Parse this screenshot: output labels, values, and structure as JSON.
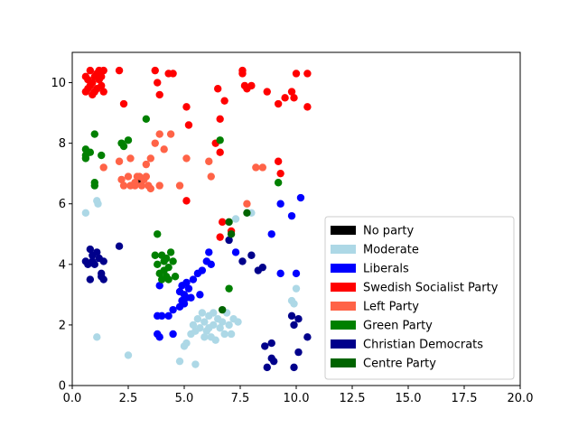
{
  "chart_data": {
    "type": "scatter",
    "title": "",
    "xlabel": "",
    "ylabel": "",
    "xlim": [
      0,
      20
    ],
    "ylim": [
      0,
      11
    ],
    "xticks": [
      "0.0",
      "2.5",
      "5.0",
      "7.5",
      "10.0",
      "12.5",
      "15.0",
      "17.5",
      "20.0"
    ],
    "yticks": [
      "0",
      "2",
      "4",
      "6",
      "8",
      "10"
    ],
    "grid": false,
    "legend_position": "lower-right",
    "series": [
      {
        "name": "No party",
        "color": "#000000",
        "points": [
          [
            3.0,
            6.8
          ]
        ]
      },
      {
        "name": "Moderate",
        "color": "#add8e6",
        "points": [
          [
            0.6,
            5.7
          ],
          [
            1.1,
            6.1
          ],
          [
            1.15,
            6.0
          ],
          [
            1.1,
            1.6
          ],
          [
            2.5,
            1.0
          ],
          [
            4.8,
            0.8
          ],
          [
            5.5,
            0.7
          ],
          [
            5.0,
            1.3
          ],
          [
            5.1,
            1.4
          ],
          [
            5.3,
            1.7
          ],
          [
            5.4,
            2.0
          ],
          [
            5.5,
            1.8
          ],
          [
            5.6,
            2.2
          ],
          [
            5.7,
            1.9
          ],
          [
            5.8,
            2.4
          ],
          [
            5.9,
            2.1
          ],
          [
            6.0,
            1.8
          ],
          [
            6.1,
            2.3
          ],
          [
            6.2,
            1.6
          ],
          [
            6.3,
            2.0
          ],
          [
            6.4,
            1.5
          ],
          [
            6.5,
            2.2
          ],
          [
            6.6,
            1.9
          ],
          [
            6.7,
            2.1
          ],
          [
            6.8,
            1.7
          ],
          [
            6.9,
            2.4
          ],
          [
            7.0,
            2.0
          ],
          [
            7.1,
            1.7
          ],
          [
            7.2,
            2.2
          ],
          [
            7.4,
            2.1
          ],
          [
            6.3,
            2.4
          ],
          [
            6.1,
            1.9
          ],
          [
            5.9,
            1.6
          ],
          [
            7.3,
            5.5
          ],
          [
            8.0,
            5.7
          ],
          [
            9.9,
            2.7
          ],
          [
            10.0,
            3.2
          ],
          [
            9.8,
            2.8
          ]
        ]
      },
      {
        "name": "Liberals",
        "color": "#0000ff",
        "points": [
          [
            3.8,
            1.7
          ],
          [
            3.9,
            1.6
          ],
          [
            4.0,
            2.3
          ],
          [
            3.8,
            2.3
          ],
          [
            4.3,
            2.3
          ],
          [
            4.5,
            1.7
          ],
          [
            4.5,
            2.5
          ],
          [
            4.8,
            2.6
          ],
          [
            4.8,
            3.1
          ],
          [
            4.9,
            3.3
          ],
          [
            5.0,
            3.0
          ],
          [
            5.1,
            3.4
          ],
          [
            5.2,
            3.2
          ],
          [
            5.0,
            2.7
          ],
          [
            5.3,
            2.9
          ],
          [
            5.4,
            3.5
          ],
          [
            5.6,
            3.7
          ],
          [
            5.8,
            3.8
          ],
          [
            6.0,
            4.1
          ],
          [
            6.1,
            4.4
          ],
          [
            6.2,
            4.0
          ],
          [
            5.1,
            2.9
          ],
          [
            4.9,
            2.8
          ],
          [
            3.9,
            3.3
          ],
          [
            8.9,
            5.0
          ],
          [
            9.3,
            6.0
          ],
          [
            9.8,
            5.6
          ],
          [
            10.2,
            6.2
          ],
          [
            9.3,
            3.7
          ],
          [
            10.0,
            3.7
          ],
          [
            7.3,
            4.4
          ],
          [
            5.7,
            3.0
          ]
        ]
      },
      {
        "name": "Swedish Socialist Party",
        "color": "#ff0000",
        "points": [
          [
            0.6,
            10.2
          ],
          [
            0.7,
            9.8
          ],
          [
            0.8,
            10.4
          ],
          [
            0.9,
            10.0
          ],
          [
            1.0,
            9.7
          ],
          [
            1.1,
            10.3
          ],
          [
            1.2,
            10.1
          ],
          [
            1.3,
            9.9
          ],
          [
            1.4,
            10.4
          ],
          [
            0.7,
            10.1
          ],
          [
            0.9,
            9.6
          ],
          [
            1.1,
            9.8
          ],
          [
            1.3,
            10.2
          ],
          [
            0.8,
            9.9
          ],
          [
            1.2,
            10.4
          ],
          [
            1.0,
            10.2
          ],
          [
            0.6,
            9.7
          ],
          [
            1.4,
            9.7
          ],
          [
            2.1,
            10.4
          ],
          [
            2.3,
            9.3
          ],
          [
            3.7,
            10.4
          ],
          [
            3.8,
            10.0
          ],
          [
            3.9,
            9.6
          ],
          [
            4.3,
            10.3
          ],
          [
            4.5,
            10.3
          ],
          [
            5.1,
            9.2
          ],
          [
            5.2,
            8.6
          ],
          [
            6.5,
            9.8
          ],
          [
            6.6,
            8.8
          ],
          [
            6.8,
            9.4
          ],
          [
            7.6,
            10.4
          ],
          [
            7.6,
            10.3
          ],
          [
            7.7,
            9.9
          ],
          [
            7.8,
            9.8
          ],
          [
            8.0,
            9.9
          ],
          [
            8.7,
            9.7
          ],
          [
            9.2,
            9.3
          ],
          [
            9.5,
            9.5
          ],
          [
            9.8,
            9.7
          ],
          [
            9.9,
            9.5
          ],
          [
            10.0,
            10.3
          ],
          [
            10.5,
            10.3
          ],
          [
            10.5,
            9.2
          ],
          [
            9.2,
            7.4
          ],
          [
            9.3,
            7.0
          ],
          [
            6.4,
            8.0
          ],
          [
            6.7,
            5.4
          ],
          [
            6.6,
            4.9
          ],
          [
            7.1,
            5.1
          ],
          [
            5.1,
            6.1
          ],
          [
            6.6,
            7.7
          ]
        ]
      },
      {
        "name": "Left Party",
        "color": "#ff6347",
        "points": [
          [
            1.4,
            7.2
          ],
          [
            2.1,
            7.4
          ],
          [
            2.2,
            6.8
          ],
          [
            2.3,
            6.6
          ],
          [
            2.5,
            6.9
          ],
          [
            2.6,
            7.5
          ],
          [
            2.6,
            6.6
          ],
          [
            2.8,
            6.6
          ],
          [
            2.9,
            6.9
          ],
          [
            3.0,
            6.9
          ],
          [
            3.2,
            6.8
          ],
          [
            3.3,
            7.3
          ],
          [
            3.4,
            6.6
          ],
          [
            3.5,
            7.5
          ],
          [
            3.7,
            8.0
          ],
          [
            3.9,
            8.3
          ],
          [
            4.1,
            7.8
          ],
          [
            4.4,
            8.3
          ],
          [
            3.9,
            6.6
          ],
          [
            3.3,
            6.9
          ],
          [
            4.8,
            6.6
          ],
          [
            5.1,
            7.5
          ],
          [
            6.1,
            7.4
          ],
          [
            6.2,
            6.9
          ],
          [
            8.2,
            7.2
          ],
          [
            8.5,
            7.2
          ],
          [
            7.8,
            6.0
          ],
          [
            2.8,
            6.7
          ],
          [
            3.1,
            6.6
          ],
          [
            3.5,
            6.5
          ]
        ]
      },
      {
        "name": "Green Party",
        "color": "#008000",
        "points": [
          [
            0.6,
            7.8
          ],
          [
            0.6,
            7.6
          ],
          [
            0.6,
            7.5
          ],
          [
            0.8,
            7.7
          ],
          [
            1.0,
            8.3
          ],
          [
            1.3,
            7.6
          ],
          [
            1.0,
            6.7
          ],
          [
            1.0,
            6.6
          ],
          [
            2.2,
            8.0
          ],
          [
            2.3,
            7.9
          ],
          [
            2.5,
            8.1
          ],
          [
            3.3,
            8.8
          ],
          [
            3.8,
            5.0
          ],
          [
            3.7,
            4.3
          ],
          [
            3.8,
            4.0
          ],
          [
            3.9,
            3.7
          ],
          [
            4.0,
            4.3
          ],
          [
            4.1,
            4.1
          ],
          [
            4.2,
            4.2
          ],
          [
            4.3,
            3.9
          ],
          [
            4.4,
            4.4
          ],
          [
            4.5,
            4.1
          ],
          [
            4.2,
            3.6
          ],
          [
            4.0,
            3.5
          ],
          [
            4.6,
            3.6
          ],
          [
            4.3,
            3.5
          ],
          [
            4.1,
            3.8
          ],
          [
            6.6,
            8.1
          ],
          [
            7.0,
            3.2
          ],
          [
            9.2,
            6.7
          ]
        ]
      },
      {
        "name": "Christian Democrats",
        "color": "#00008b",
        "points": [
          [
            0.6,
            4.1
          ],
          [
            0.7,
            4.0
          ],
          [
            0.8,
            4.5
          ],
          [
            0.9,
            4.3
          ],
          [
            1.0,
            4.0
          ],
          [
            1.1,
            4.4
          ],
          [
            1.2,
            4.2
          ],
          [
            1.3,
            3.7
          ],
          [
            1.4,
            4.1
          ],
          [
            0.8,
            3.5
          ],
          [
            1.3,
            3.6
          ],
          [
            0.9,
            4.1
          ],
          [
            1.4,
            3.5
          ],
          [
            2.1,
            4.6
          ],
          [
            7.0,
            4.8
          ],
          [
            7.6,
            4.1
          ],
          [
            8.0,
            4.3
          ],
          [
            8.3,
            3.8
          ],
          [
            8.5,
            3.9
          ],
          [
            8.6,
            1.3
          ],
          [
            8.9,
            1.4
          ],
          [
            8.9,
            0.9
          ],
          [
            8.7,
            0.6
          ],
          [
            9.0,
            0.8
          ],
          [
            9.8,
            2.3
          ],
          [
            9.9,
            2.0
          ],
          [
            10.1,
            2.2
          ],
          [
            10.1,
            1.1
          ],
          [
            10.5,
            1.6
          ],
          [
            9.9,
            0.6
          ]
        ]
      },
      {
        "name": "Centre Party",
        "color": "#006400",
        "points": [
          [
            6.7,
            2.5
          ],
          [
            7.0,
            5.4
          ],
          [
            7.1,
            5.0
          ],
          [
            7.8,
            5.7
          ]
        ]
      }
    ]
  }
}
